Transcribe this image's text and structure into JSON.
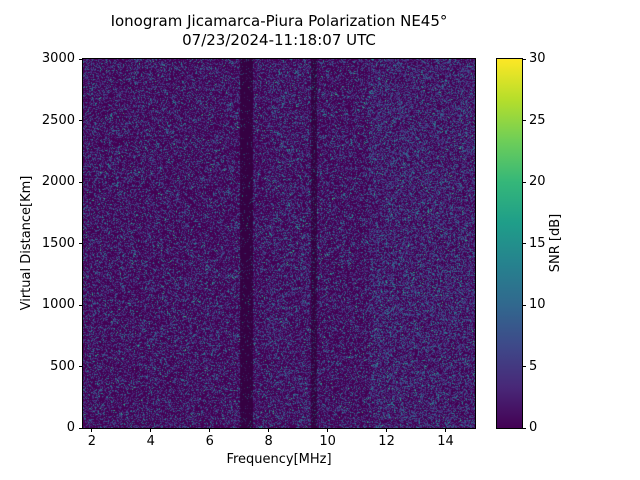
{
  "figure": {
    "background": "#ffffff"
  },
  "chart_data": {
    "type": "heatmap",
    "title_lines": [
      "Ionogram Jicamarca-Piura Polarization NE45°",
      "07/23/2024-11:18:07 UTC"
    ],
    "xlabel": "Frequency[MHz]",
    "ylabel": "Virtual Distance[Km]",
    "x_range_mhz": [
      1.7,
      15.0
    ],
    "y_range_km": [
      0,
      3000
    ],
    "x_ticks": [
      2,
      4,
      6,
      8,
      10,
      12,
      14
    ],
    "y_ticks": [
      0,
      500,
      1000,
      1500,
      2000,
      2500,
      3000
    ],
    "grid": false,
    "colorbar": {
      "label": "SNR [dB]",
      "min": 0,
      "max": 30,
      "ticks": [
        0,
        5,
        10,
        15,
        20,
        25,
        30
      ],
      "colormap": "viridis",
      "stops": [
        "#440154",
        "#482878",
        "#3e4989",
        "#31688e",
        "#26828e",
        "#1f9e89",
        "#35b779",
        "#6ece58",
        "#b5de2b",
        "#fde725"
      ]
    },
    "description": "Background-noise ionogram with no coherent echo traces: SNR is ~0 dB (dark purple) nearly everywhere with fine random speckle noise up to ~15 dB (blue/teal dots). Darker low-noise vertical bands appear near 7.25 MHz and 9.55 MHz; speckle density is slightly higher above ~11.4 MHz.",
    "heatmap": {
      "seed": 20240723,
      "noise_levels": [
        {
          "snr_db": 0,
          "color": "#440154",
          "weight": 0.6
        },
        {
          "snr_db": 3,
          "color": "#482878",
          "weight": 0.21
        },
        {
          "snr_db": 6,
          "color": "#3e4989",
          "weight": 0.105
        },
        {
          "snr_db": 9,
          "color": "#31688e",
          "weight": 0.05
        },
        {
          "snr_db": 12,
          "color": "#26828e",
          "weight": 0.022
        },
        {
          "snr_db": 15,
          "color": "#21918c",
          "weight": 0.01
        },
        {
          "snr_db": 20,
          "color": "#35b779",
          "weight": 0.003
        }
      ],
      "dark_bands": [
        {
          "freq_mhz": 7.25,
          "width_mhz": 0.45,
          "speckle_factor": 0.25
        },
        {
          "freq_mhz": 9.55,
          "width_mhz": 0.2,
          "speckle_factor": 0.45
        }
      ],
      "dense_regions": [
        {
          "from_mhz": 11.4,
          "to_mhz": 15.0,
          "boost": 1.35
        },
        {
          "from_mhz": 8.0,
          "to_mhz": 9.4,
          "boost": 1.15
        }
      ]
    }
  }
}
